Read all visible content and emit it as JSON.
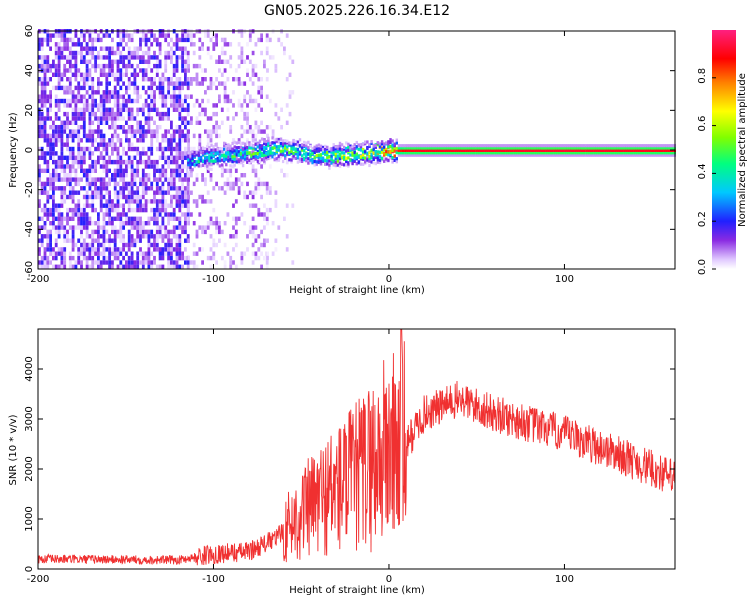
{
  "figure": {
    "title": "GN05.2025.226.16.34.E12"
  },
  "chart_data": [
    {
      "type": "heatmap",
      "name": "spectrogram",
      "xlabel": "Height of straight line (km)",
      "ylabel": "Frequency (Hz)",
      "xlim": [
        -200,
        163
      ],
      "ylim": [
        -60,
        60
      ],
      "x_ticks": [
        -200,
        -100,
        0,
        100
      ],
      "y_ticks": [
        -60,
        -40,
        -20,
        0,
        20,
        40,
        60
      ],
      "colorbar": {
        "label": "Normalized spectral amplitude",
        "range": [
          0,
          1
        ],
        "ticks": [
          0.0,
          0.2,
          0.4,
          0.6,
          0.8
        ],
        "tick_labels": [
          "0.0",
          "0.2",
          "0.4",
          "0.6",
          "0.8"
        ]
      },
      "regions": [
        {
          "x_range": [
            -200,
            -115
          ],
          "y_range": [
            -60,
            60
          ],
          "amplitude_range": [
            0.02,
            0.2
          ],
          "density": 0.65
        },
        {
          "x_range": [
            -115,
            -70
          ],
          "y_range": [
            -60,
            60
          ],
          "amplitude_range": [
            0.01,
            0.12
          ],
          "density": 0.3
        },
        {
          "x_range": [
            -70,
            -55
          ],
          "y_range": [
            -60,
            60
          ],
          "amplitude_range": [
            0.01,
            0.06
          ],
          "density": 0.12
        }
      ],
      "ridge": [
        {
          "x": -115,
          "y": -5,
          "amplitude": 0.35
        },
        {
          "x": -100,
          "y": -3,
          "amplitude": 0.4
        },
        {
          "x": -80,
          "y": -1,
          "amplitude": 0.45
        },
        {
          "x": -60,
          "y": 1,
          "amplitude": 0.5
        },
        {
          "x": -40,
          "y": -3,
          "amplitude": 0.5
        },
        {
          "x": -20,
          "y": -2,
          "amplitude": 0.55
        },
        {
          "x": 0,
          "y": 0,
          "amplitude": 0.8
        },
        {
          "x": 10,
          "y": 0,
          "amplitude": 0.9
        },
        {
          "x": 100,
          "y": 0,
          "amplitude": 0.92
        },
        {
          "x": 163,
          "y": 0,
          "amplitude": 0.9
        }
      ]
    },
    {
      "type": "line",
      "name": "snr",
      "xlabel": "Height of straight line (km)",
      "ylabel": "SNR (10 * v/v)",
      "xlim": [
        -200,
        163
      ],
      "ylim": [
        0,
        4800
      ],
      "x_ticks": [
        -200,
        -100,
        0,
        100
      ],
      "y_ticks": [
        0,
        1000,
        2000,
        3000,
        4000
      ],
      "color": "#f03030",
      "envelope": [
        {
          "x": -200,
          "y": 200
        },
        {
          "x": -120,
          "y": 180
        },
        {
          "x": -100,
          "y": 300
        },
        {
          "x": -80,
          "y": 350
        },
        {
          "x": -65,
          "y": 600
        },
        {
          "x": -50,
          "y": 1100
        },
        {
          "x": -35,
          "y": 1500
        },
        {
          "x": -20,
          "y": 1800
        },
        {
          "x": -10,
          "y": 2100
        },
        {
          "x": 0,
          "y": 2400
        },
        {
          "x": 10,
          "y": 2500
        },
        {
          "x": 20,
          "y": 3100
        },
        {
          "x": 40,
          "y": 3400
        },
        {
          "x": 60,
          "y": 3100
        },
        {
          "x": 100,
          "y": 2700
        },
        {
          "x": 130,
          "y": 2300
        },
        {
          "x": 163,
          "y": 1800
        }
      ],
      "peak": {
        "x": 7,
        "y": 4800
      }
    }
  ]
}
